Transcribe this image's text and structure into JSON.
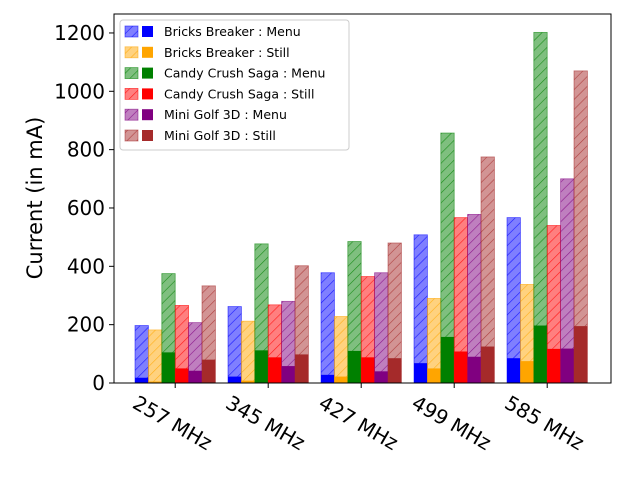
{
  "chart_data": {
    "type": "bar",
    "categories": [
      "257 MHz",
      "345 MHz",
      "427 MHz",
      "499 MHz",
      "585 MHz"
    ],
    "xlabel": "",
    "ylabel": "Current (in mA)",
    "ylim": [
      0,
      1265
    ],
    "yticks": [
      0,
      200,
      400,
      600,
      800,
      1000,
      1200
    ],
    "grid": false,
    "legend_position": "top-left",
    "series": [
      {
        "name": "Bricks Breaker",
        "color": "#0000ff",
        "menu": [
          197,
          262,
          378,
          508,
          567
        ],
        "still": [
          182,
          212,
          228,
          290,
          338
        ],
        "menu_base": [
          18,
          22,
          28,
          68,
          85
        ],
        "still_base": [
          5,
          8,
          22,
          50,
          75
        ]
      },
      {
        "name": "Candy Crush Saga",
        "color_menu": "#008000",
        "color_still": "#ff0000",
        "menu": [
          375,
          477,
          485,
          857,
          1202
        ],
        "still": [
          266,
          268,
          365,
          567,
          540
        ],
        "menu_base": [
          105,
          112,
          110,
          158,
          197
        ],
        "still_base": [
          50,
          88,
          88,
          108,
          117
        ]
      },
      {
        "name": "Mini Golf 3D",
        "color_menu": "#800080",
        "color_still": "#a52a2a",
        "menu": [
          207,
          280,
          378,
          578,
          700
        ],
        "still": [
          333,
          402,
          480,
          775,
          1070
        ],
        "menu_base": [
          42,
          58,
          40,
          90,
          118
        ],
        "still_base": [
          80,
          98,
          85,
          125,
          195
        ]
      }
    ],
    "legend": [
      {
        "label": "Bricks Breaker : Menu",
        "color": "#0000ff",
        "hatch_color": "#0000ff",
        "style": "hatched"
      },
      {
        "label": "Bricks Breaker : Still",
        "color": "#ffa500",
        "style": "hatched"
      },
      {
        "label": "Candy Crush Saga : Menu",
        "color": "#008000",
        "style": "hatched"
      },
      {
        "label": "Candy Crush Saga : Still",
        "color": "#ff0000",
        "style": "hatched"
      },
      {
        "label": "Mini Golf 3D : Menu",
        "color": "#800080",
        "style": "hatched"
      },
      {
        "label": "Mini Golf 3D : Still",
        "color": "#a52a2a",
        "style": "hatched"
      }
    ]
  }
}
